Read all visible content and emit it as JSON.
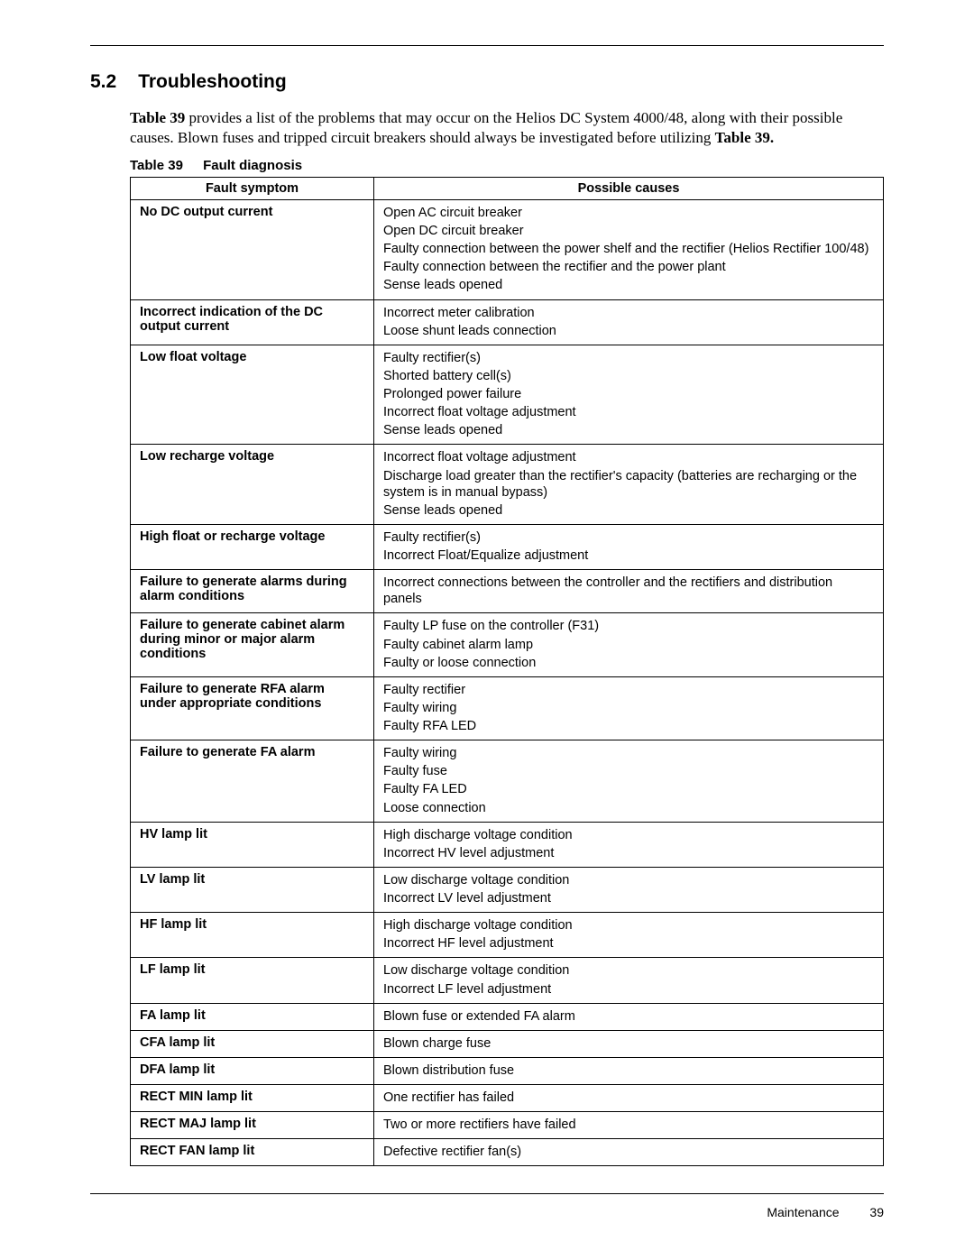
{
  "section": {
    "number": "5.2",
    "title": "Troubleshooting"
  },
  "intro": {
    "pre": "Table 39",
    "body1": " provides a list of the problems that may occur on the Helios DC System 4000/48, along with their possible causes. Blown fuses and tripped circuit breakers should always be investigated before utilizing ",
    "bold2": "Table 39."
  },
  "caption": {
    "num": "Table 39",
    "title": "Fault diagnosis"
  },
  "headers": {
    "left": "Fault symptom",
    "right": "Possible causes"
  },
  "rows": [
    {
      "symptom": "No DC output current",
      "causes": [
        "Open AC circuit breaker",
        "Open DC circuit breaker",
        "Faulty connection between the power shelf and the rectifier (Helios Rectifier 100/48)",
        "Faulty connection between the rectifier and the power plant",
        "Sense leads opened"
      ]
    },
    {
      "symptom": "Incorrect indication of the DC output current",
      "causes": [
        "Incorrect meter calibration",
        "Loose shunt leads connection"
      ]
    },
    {
      "symptom": "Low float voltage",
      "causes": [
        "Faulty rectifier(s)",
        "Shorted battery cell(s)",
        "Prolonged power failure",
        "Incorrect float voltage adjustment",
        "Sense leads opened"
      ]
    },
    {
      "symptom": "Low recharge voltage",
      "causes": [
        "Incorrect float voltage adjustment",
        "Discharge load greater than the rectifier's capacity (batteries are recharging or the system is in manual bypass)",
        "Sense leads opened"
      ]
    },
    {
      "symptom": "High float or recharge voltage",
      "causes": [
        "Faulty rectifier(s)",
        "Incorrect Float/Equalize adjustment"
      ]
    },
    {
      "symptom": "Failure to generate alarms during alarm conditions",
      "causes": [
        "Incorrect connections between the controller and the rectifiers and distribution panels"
      ]
    },
    {
      "symptom": "Failure to generate cabinet alarm during minor or major alarm conditions",
      "causes": [
        "Faulty LP fuse on the controller (F31)",
        "Faulty cabinet alarm lamp",
        "Faulty or loose connection"
      ]
    },
    {
      "symptom": "Failure to generate RFA alarm under appropriate conditions",
      "causes": [
        "Faulty rectifier",
        "Faulty wiring",
        "Faulty RFA LED"
      ]
    },
    {
      "symptom": "Failure to generate FA alarm",
      "causes": [
        "Faulty wiring",
        "Faulty fuse",
        "Faulty FA LED",
        "Loose connection"
      ]
    },
    {
      "symptom": "HV lamp lit",
      "causes": [
        "High discharge voltage condition",
        "Incorrect HV level adjustment"
      ]
    },
    {
      "symptom": "LV lamp lit",
      "causes": [
        "Low discharge voltage condition",
        "Incorrect LV level adjustment"
      ]
    },
    {
      "symptom": "HF lamp lit",
      "causes": [
        "High discharge voltage condition",
        "Incorrect HF level adjustment"
      ]
    },
    {
      "symptom": "LF lamp lit",
      "causes": [
        "Low discharge voltage condition",
        "Incorrect LF level adjustment"
      ]
    },
    {
      "symptom": "FA lamp lit",
      "causes": [
        "Blown fuse or extended FA alarm"
      ]
    },
    {
      "symptom": "CFA lamp lit",
      "causes": [
        "Blown charge fuse"
      ]
    },
    {
      "symptom": "DFA lamp lit",
      "causes": [
        "Blown distribution fuse"
      ]
    },
    {
      "symptom": "RECT MIN lamp lit",
      "causes": [
        "One rectifier has failed"
      ]
    },
    {
      "symptom": "RECT MAJ lamp lit",
      "causes": [
        "Two or more rectifiers have failed"
      ]
    },
    {
      "symptom": "RECT FAN lamp lit",
      "causes": [
        "Defective rectifier fan(s)"
      ]
    }
  ],
  "footer": {
    "label": "Maintenance",
    "page": "39"
  }
}
